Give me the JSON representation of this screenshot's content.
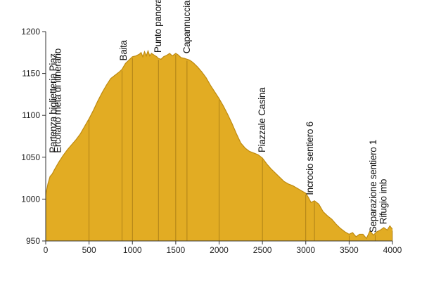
{
  "chart_data": {
    "type": "area",
    "title": "",
    "xlabel": "",
    "ylabel": "",
    "xlim": [
      0,
      4000
    ],
    "ylim": [
      950,
      1200
    ],
    "x_ticks": [
      0,
      500,
      1000,
      1500,
      2000,
      2500,
      3000,
      3500,
      4000
    ],
    "y_ticks": [
      950,
      1000,
      1050,
      1100,
      1150,
      1200
    ],
    "grid": false,
    "colors": {
      "fill": "#E2AC23",
      "outline": "#BE8A10",
      "marker_line": "#8C6410",
      "axis": "#333333"
    },
    "series": [
      {
        "x": [
          0,
          25,
          50,
          75,
          100,
          150,
          200,
          250,
          300,
          350,
          400,
          450,
          500,
          550,
          600,
          650,
          700,
          750,
          800,
          850,
          880,
          920,
          960,
          1000,
          1040,
          1080,
          1100,
          1120,
          1140,
          1160,
          1180,
          1200,
          1220,
          1250,
          1280,
          1300,
          1330,
          1360,
          1400,
          1430,
          1460,
          1500,
          1530,
          1560,
          1600,
          1630,
          1660,
          1700,
          1750,
          1800,
          1850,
          1900,
          1950,
          2000,
          2050,
          2100,
          2150,
          2200,
          2250,
          2300,
          2350,
          2400,
          2450,
          2500,
          2550,
          2600,
          2650,
          2700,
          2750,
          2800,
          2850,
          2900,
          2950,
          3000,
          3030,
          3060,
          3100,
          3150,
          3200,
          3250,
          3300,
          3350,
          3400,
          3450,
          3500,
          3540,
          3580,
          3620,
          3660,
          3700,
          3740,
          3780,
          3820,
          3860,
          3900,
          3940,
          3970,
          4000
        ],
        "y": [
          1005,
          1018,
          1027,
          1030,
          1035,
          1044,
          1052,
          1059,
          1065,
          1071,
          1078,
          1087,
          1096,
          1106,
          1117,
          1127,
          1136,
          1144,
          1148,
          1152,
          1155,
          1162,
          1166,
          1170,
          1171,
          1173,
          1175,
          1170,
          1176,
          1171,
          1177,
          1171,
          1174,
          1172,
          1170,
          1168,
          1167,
          1170,
          1172,
          1174,
          1171,
          1174,
          1172,
          1169,
          1168,
          1167,
          1166,
          1163,
          1158,
          1152,
          1145,
          1136,
          1128,
          1120,
          1111,
          1101,
          1090,
          1078,
          1067,
          1061,
          1057,
          1055,
          1053,
          1049,
          1042,
          1036,
          1031,
          1026,
          1021,
          1018,
          1016,
          1013,
          1010,
          1007,
          1002,
          996,
          998,
          994,
          985,
          980,
          976,
          970,
          965,
          961,
          958,
          960,
          955,
          958,
          958,
          953,
          962,
          957,
          961,
          963,
          966,
          963,
          968,
          964
        ]
      }
    ],
    "waypoints": [
      {
        "x": 0,
        "label": "Partenza biglietteria Piaz."
      },
      {
        "x": 200,
        "label": "Ercolano meta di itinerario"
      },
      {
        "x": 900,
        "label": "Baita"
      },
      {
        "x": 1300,
        "label": "Punto panoramico"
      },
      {
        "x": 1630,
        "label": "Capannuccia - meta ravvicinata"
      },
      {
        "x": 2500,
        "label": "Piazzale Casina"
      },
      {
        "x": 3050,
        "label": "Incrocio sentiero 6"
      },
      {
        "x": 3780,
        "label": "Separazione sentiero 1"
      },
      {
        "x": 3900,
        "label": "Rifugio imb"
      }
    ],
    "marker_lines_x": [
      500,
      880,
      1000,
      1300,
      1500,
      1630,
      2000,
      2500,
      3000,
      3100,
      3500,
      3800,
      4000
    ]
  }
}
